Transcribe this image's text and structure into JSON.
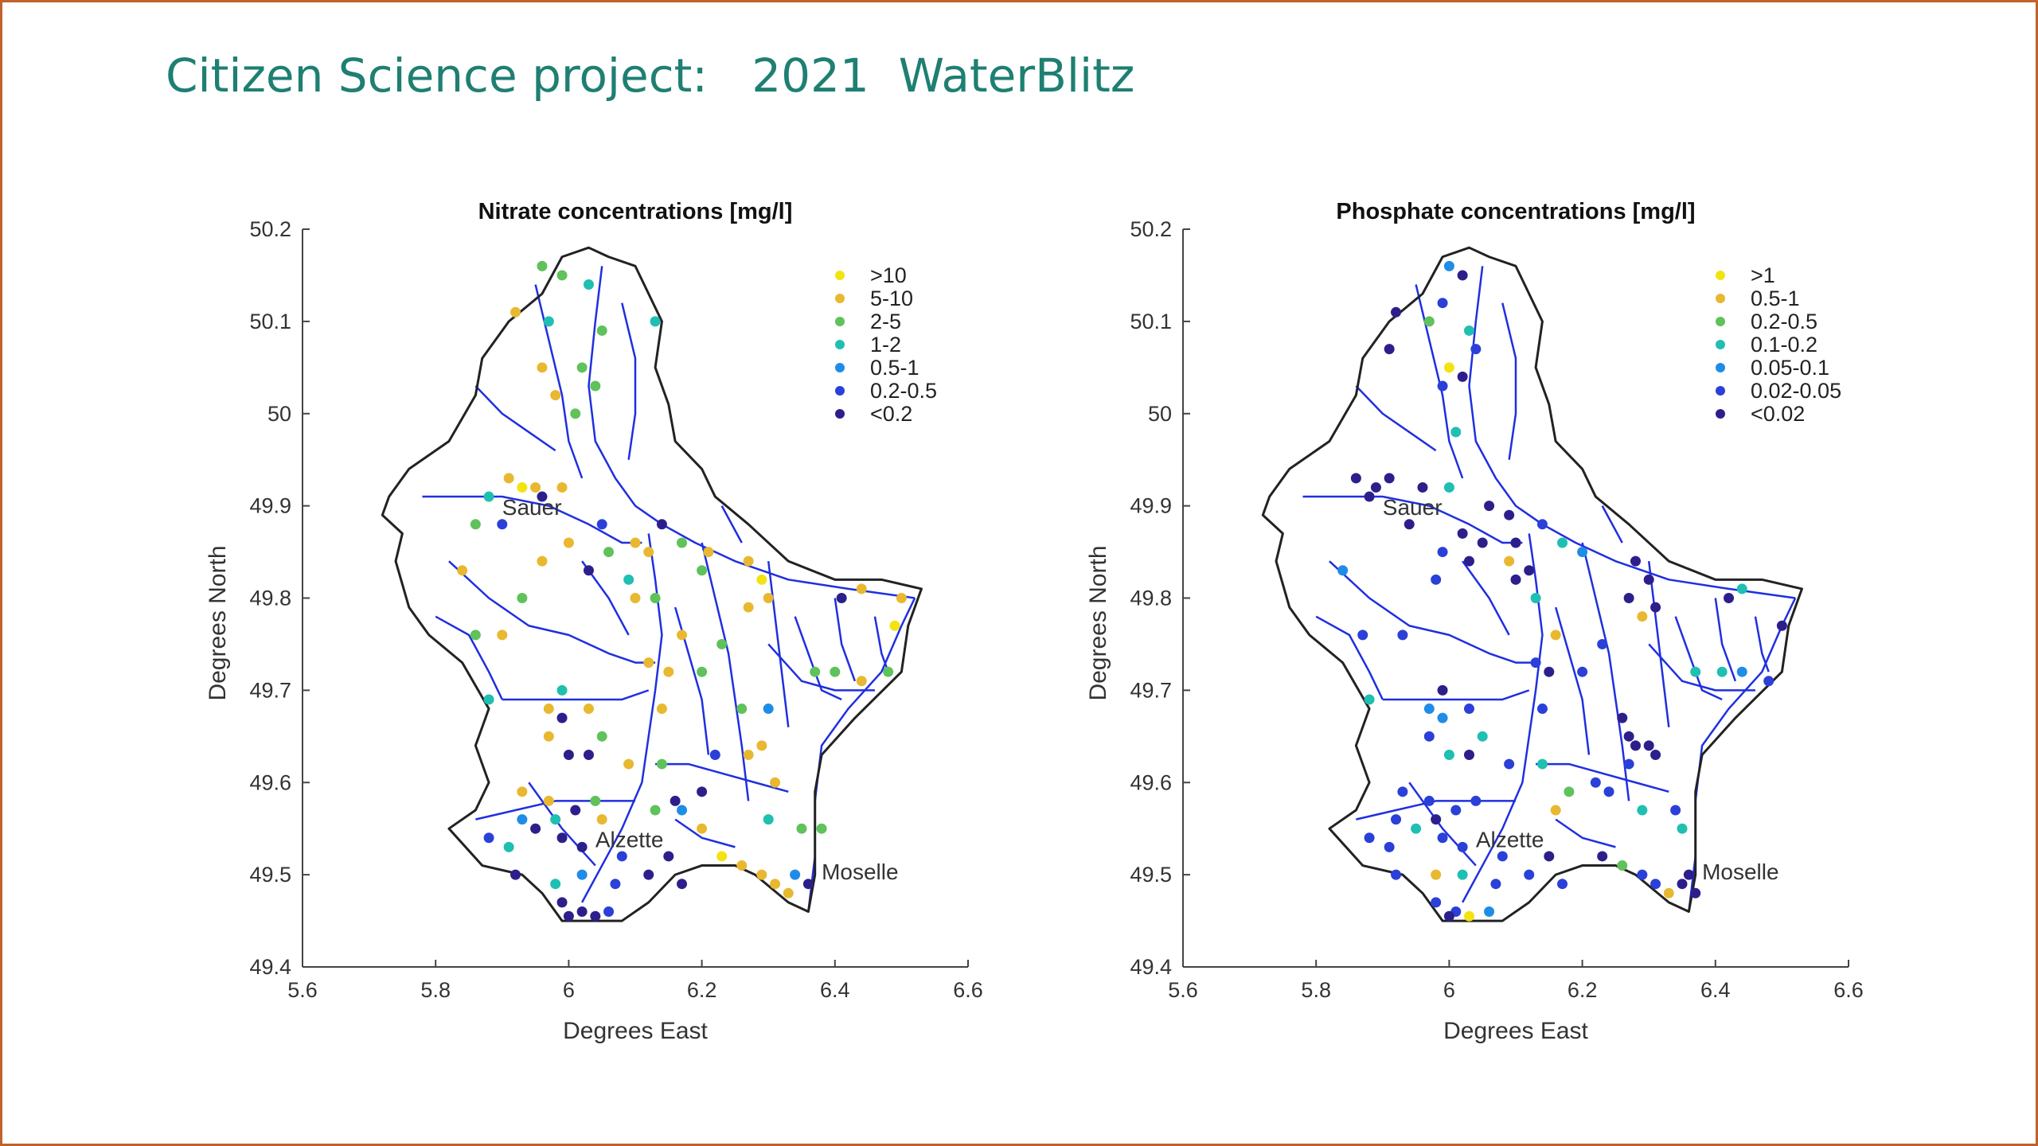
{
  "slide_title": "Citizen Science project:   2021  WaterBlitz",
  "colors": {
    "frame": "#c0622a",
    "title": "#1e7f72",
    "river": "#1f2fe0",
    "border": "#222222",
    "class_colors": [
      "#f2e311",
      "#e8b830",
      "#5fc25a",
      "#1fbfb2",
      "#1f8ce8",
      "#2a40d8",
      "#2c1f8c"
    ]
  },
  "chart_data": [
    {
      "type": "scatter",
      "title": "Nitrate concentrations [mg/l]",
      "xlabel": "Degrees East",
      "ylabel": "Degrees North",
      "xlim": [
        5.6,
        6.6
      ],
      "ylim": [
        49.4,
        50.2
      ],
      "xticks": [
        "5.6",
        "5.8",
        "6",
        "6.2",
        "6.4",
        "6.6"
      ],
      "yticks": [
        "49.4",
        "49.5",
        "49.6",
        "49.7",
        "49.8",
        "49.9",
        "50",
        "50.1",
        "50.2"
      ],
      "legend_position": "top-right",
      "legend": [
        ">10",
        "5-10",
        "2-5",
        "1-2",
        "0.5-1",
        "0.2-0.5",
        "<0.2"
      ],
      "annotations": [
        {
          "text": "Sauer",
          "x": 5.9,
          "y": 49.89
        },
        {
          "text": "Alzette",
          "x": 6.04,
          "y": 49.53
        },
        {
          "text": "Moselle",
          "x": 6.38,
          "y": 49.495
        }
      ],
      "points": [
        [
          5.96,
          50.16,
          2
        ],
        [
          5.99,
          50.15,
          2
        ],
        [
          6.03,
          50.14,
          3
        ],
        [
          5.92,
          50.11,
          1
        ],
        [
          5.97,
          50.1,
          3
        ],
        [
          6.05,
          50.09,
          2
        ],
        [
          6.13,
          50.1,
          3
        ],
        [
          5.96,
          50.05,
          1
        ],
        [
          6.02,
          50.05,
          2
        ],
        [
          6.04,
          50.03,
          2
        ],
        [
          5.98,
          50.02,
          1
        ],
        [
          6.01,
          50.0,
          2
        ],
        [
          5.91,
          49.93,
          1
        ],
        [
          5.93,
          49.92,
          0
        ],
        [
          5.95,
          49.92,
          1
        ],
        [
          5.88,
          49.91,
          3
        ],
        [
          5.99,
          49.92,
          1
        ],
        [
          5.96,
          49.91,
          6
        ],
        [
          5.86,
          49.88,
          2
        ],
        [
          5.9,
          49.88,
          5
        ],
        [
          6.05,
          49.88,
          5
        ],
        [
          6.1,
          49.86,
          1
        ],
        [
          6.14,
          49.88,
          6
        ],
        [
          6.0,
          49.86,
          1
        ],
        [
          6.06,
          49.85,
          2
        ],
        [
          6.12,
          49.85,
          1
        ],
        [
          6.17,
          49.86,
          2
        ],
        [
          6.21,
          49.85,
          1
        ],
        [
          5.84,
          49.83,
          1
        ],
        [
          5.96,
          49.84,
          1
        ],
        [
          6.03,
          49.83,
          6
        ],
        [
          6.09,
          49.82,
          3
        ],
        [
          6.2,
          49.83,
          2
        ],
        [
          6.27,
          49.84,
          1
        ],
        [
          6.29,
          49.82,
          0
        ],
        [
          6.3,
          49.8,
          1
        ],
        [
          5.93,
          49.8,
          2
        ],
        [
          6.1,
          49.8,
          1
        ],
        [
          6.13,
          49.8,
          2
        ],
        [
          6.27,
          49.79,
          1
        ],
        [
          6.41,
          49.8,
          6
        ],
        [
          6.44,
          49.81,
          1
        ],
        [
          6.5,
          49.8,
          1
        ],
        [
          5.86,
          49.76,
          2
        ],
        [
          5.9,
          49.76,
          1
        ],
        [
          6.17,
          49.76,
          1
        ],
        [
          6.23,
          49.75,
          2
        ],
        [
          6.49,
          49.77,
          0
        ],
        [
          6.12,
          49.73,
          1
        ],
        [
          6.15,
          49.72,
          1
        ],
        [
          6.2,
          49.72,
          2
        ],
        [
          6.37,
          49.72,
          2
        ],
        [
          6.4,
          49.72,
          2
        ],
        [
          6.44,
          49.71,
          1
        ],
        [
          6.48,
          49.72,
          2
        ],
        [
          5.99,
          49.7,
          3
        ],
        [
          5.88,
          49.69,
          3
        ],
        [
          5.97,
          49.68,
          1
        ],
        [
          6.03,
          49.68,
          1
        ],
        [
          5.99,
          49.67,
          6
        ],
        [
          5.97,
          49.65,
          1
        ],
        [
          6.05,
          49.65,
          2
        ],
        [
          6.14,
          49.68,
          1
        ],
        [
          6.26,
          49.68,
          2
        ],
        [
          6.3,
          49.68,
          4
        ],
        [
          6.0,
          49.63,
          6
        ],
        [
          6.03,
          49.63,
          6
        ],
        [
          6.09,
          49.62,
          1
        ],
        [
          6.14,
          49.62,
          2
        ],
        [
          6.22,
          49.63,
          5
        ],
        [
          6.27,
          49.63,
          1
        ],
        [
          6.29,
          49.64,
          1
        ],
        [
          6.31,
          49.6,
          1
        ],
        [
          5.93,
          49.59,
          1
        ],
        [
          5.97,
          49.58,
          1
        ],
        [
          6.04,
          49.58,
          2
        ],
        [
          6.16,
          49.58,
          6
        ],
        [
          6.2,
          49.59,
          6
        ],
        [
          6.17,
          49.57,
          4
        ],
        [
          6.13,
          49.57,
          2
        ],
        [
          5.93,
          49.56,
          4
        ],
        [
          5.95,
          49.55,
          6
        ],
        [
          5.98,
          49.56,
          3
        ],
        [
          6.01,
          49.57,
          6
        ],
        [
          6.05,
          49.56,
          1
        ],
        [
          6.2,
          49.55,
          1
        ],
        [
          6.3,
          49.56,
          3
        ],
        [
          6.35,
          49.55,
          2
        ],
        [
          6.38,
          49.55,
          2
        ],
        [
          5.88,
          49.54,
          5
        ],
        [
          5.91,
          49.53,
          3
        ],
        [
          5.99,
          49.54,
          6
        ],
        [
          6.02,
          49.53,
          6
        ],
        [
          6.08,
          49.52,
          5
        ],
        [
          6.15,
          49.52,
          6
        ],
        [
          6.23,
          49.52,
          0
        ],
        [
          6.26,
          49.51,
          1
        ],
        [
          6.29,
          49.5,
          1
        ],
        [
          6.31,
          49.49,
          1
        ],
        [
          6.33,
          49.48,
          1
        ],
        [
          5.92,
          49.5,
          6
        ],
        [
          5.98,
          49.49,
          3
        ],
        [
          6.02,
          49.5,
          4
        ],
        [
          6.07,
          49.49,
          5
        ],
        [
          6.12,
          49.5,
          6
        ],
        [
          6.17,
          49.49,
          6
        ],
        [
          6.34,
          49.5,
          4
        ],
        [
          6.36,
          49.49,
          6
        ],
        [
          5.99,
          49.47,
          6
        ],
        [
          6.02,
          49.46,
          6
        ],
        [
          6.04,
          49.455,
          6
        ],
        [
          6.0,
          49.455,
          6
        ],
        [
          6.06,
          49.46,
          5
        ]
      ]
    },
    {
      "type": "scatter",
      "title": "Phosphate concentrations [mg/l]",
      "xlabel": "Degrees East",
      "ylabel": "Degrees North",
      "xlim": [
        5.6,
        6.6
      ],
      "ylim": [
        49.4,
        50.2
      ],
      "xticks": [
        "5.6",
        "5.8",
        "6",
        "6.2",
        "6.4",
        "6.6"
      ],
      "yticks": [
        "49.4",
        "49.5",
        "49.6",
        "49.7",
        "49.8",
        "49.9",
        "50",
        "50.1",
        "50.2"
      ],
      "legend_position": "top-right",
      "legend": [
        ">1",
        "0.5-1",
        "0.2-0.5",
        "0.1-0.2",
        "0.05-0.1",
        "0.02-0.05",
        "<0.02"
      ],
      "annotations": [
        {
          "text": "Sauer",
          "x": 5.9,
          "y": 49.89
        },
        {
          "text": "Alzette",
          "x": 6.04,
          "y": 49.53
        },
        {
          "text": "Moselle",
          "x": 6.38,
          "y": 49.495
        }
      ],
      "points": [
        [
          6.0,
          50.16,
          4
        ],
        [
          6.02,
          50.15,
          6
        ],
        [
          5.92,
          50.11,
          6
        ],
        [
          5.99,
          50.12,
          5
        ],
        [
          5.97,
          50.1,
          2
        ],
        [
          6.03,
          50.09,
          3
        ],
        [
          5.91,
          50.07,
          6
        ],
        [
          6.04,
          50.07,
          5
        ],
        [
          6.0,
          50.05,
          0
        ],
        [
          6.02,
          50.04,
          6
        ],
        [
          5.99,
          50.03,
          5
        ],
        [
          6.01,
          49.98,
          3
        ],
        [
          5.86,
          49.93,
          6
        ],
        [
          5.89,
          49.92,
          6
        ],
        [
          5.91,
          49.93,
          6
        ],
        [
          5.88,
          49.91,
          6
        ],
        [
          5.96,
          49.92,
          6
        ],
        [
          6.0,
          49.92,
          3
        ],
        [
          6.06,
          49.9,
          6
        ],
        [
          6.09,
          49.89,
          6
        ],
        [
          5.94,
          49.88,
          6
        ],
        [
          6.02,
          49.87,
          6
        ],
        [
          6.05,
          49.86,
          6
        ],
        [
          6.1,
          49.86,
          6
        ],
        [
          6.14,
          49.88,
          5
        ],
        [
          6.17,
          49.86,
          3
        ],
        [
          6.2,
          49.85,
          4
        ],
        [
          5.99,
          49.85,
          5
        ],
        [
          6.03,
          49.84,
          6
        ],
        [
          6.09,
          49.84,
          1
        ],
        [
          6.12,
          49.83,
          6
        ],
        [
          6.1,
          49.82,
          6
        ],
        [
          5.84,
          49.83,
          4
        ],
        [
          5.98,
          49.82,
          5
        ],
        [
          6.28,
          49.84,
          6
        ],
        [
          6.3,
          49.82,
          6
        ],
        [
          6.27,
          49.8,
          6
        ],
        [
          6.31,
          49.79,
          6
        ],
        [
          6.29,
          49.78,
          1
        ],
        [
          6.42,
          49.8,
          6
        ],
        [
          6.44,
          49.81,
          3
        ],
        [
          6.13,
          49.8,
          3
        ],
        [
          5.87,
          49.76,
          5
        ],
        [
          5.93,
          49.76,
          5
        ],
        [
          6.16,
          49.76,
          1
        ],
        [
          6.23,
          49.75,
          5
        ],
        [
          6.5,
          49.77,
          6
        ],
        [
          6.13,
          49.73,
          5
        ],
        [
          6.15,
          49.72,
          6
        ],
        [
          6.2,
          49.72,
          5
        ],
        [
          6.37,
          49.72,
          3
        ],
        [
          6.41,
          49.72,
          3
        ],
        [
          6.44,
          49.72,
          4
        ],
        [
          6.48,
          49.71,
          5
        ],
        [
          5.99,
          49.7,
          6
        ],
        [
          5.88,
          49.69,
          3
        ],
        [
          5.97,
          49.68,
          4
        ],
        [
          6.03,
          49.68,
          5
        ],
        [
          5.99,
          49.67,
          4
        ],
        [
          6.26,
          49.67,
          6
        ],
        [
          6.27,
          49.65,
          6
        ],
        [
          6.28,
          49.64,
          6
        ],
        [
          6.3,
          49.64,
          6
        ],
        [
          6.31,
          49.63,
          6
        ],
        [
          6.27,
          49.62,
          5
        ],
        [
          5.97,
          49.65,
          5
        ],
        [
          6.05,
          49.65,
          3
        ],
        [
          6.14,
          49.68,
          5
        ],
        [
          6.0,
          49.63,
          3
        ],
        [
          6.03,
          49.63,
          6
        ],
        [
          6.09,
          49.62,
          5
        ],
        [
          6.14,
          49.62,
          3
        ],
        [
          6.22,
          49.6,
          5
        ],
        [
          6.24,
          49.59,
          5
        ],
        [
          6.18,
          49.59,
          2
        ],
        [
          6.16,
          49.57,
          1
        ],
        [
          5.93,
          49.59,
          5
        ],
        [
          5.97,
          49.58,
          5
        ],
        [
          6.04,
          49.58,
          5
        ],
        [
          6.29,
          49.57,
          3
        ],
        [
          6.34,
          49.57,
          5
        ],
        [
          5.92,
          49.56,
          5
        ],
        [
          5.95,
          49.55,
          3
        ],
        [
          5.98,
          49.56,
          6
        ],
        [
          6.01,
          49.57,
          5
        ],
        [
          6.35,
          49.55,
          3
        ],
        [
          5.88,
          49.54,
          5
        ],
        [
          5.91,
          49.53,
          5
        ],
        [
          5.99,
          49.54,
          5
        ],
        [
          6.02,
          49.53,
          5
        ],
        [
          6.08,
          49.52,
          5
        ],
        [
          6.15,
          49.52,
          6
        ],
        [
          6.23,
          49.52,
          6
        ],
        [
          6.26,
          49.51,
          2
        ],
        [
          6.29,
          49.5,
          5
        ],
        [
          6.31,
          49.49,
          5
        ],
        [
          6.33,
          49.48,
          1
        ],
        [
          5.92,
          49.5,
          5
        ],
        [
          5.98,
          49.5,
          1
        ],
        [
          6.02,
          49.5,
          3
        ],
        [
          6.07,
          49.49,
          5
        ],
        [
          6.12,
          49.5,
          5
        ],
        [
          6.17,
          49.49,
          5
        ],
        [
          6.36,
          49.5,
          6
        ],
        [
          6.35,
          49.49,
          6
        ],
        [
          6.37,
          49.48,
          6
        ],
        [
          5.98,
          49.47,
          5
        ],
        [
          6.01,
          49.46,
          5
        ],
        [
          6.03,
          49.455,
          0
        ],
        [
          6.0,
          49.455,
          6
        ],
        [
          6.06,
          49.46,
          4
        ]
      ]
    }
  ]
}
